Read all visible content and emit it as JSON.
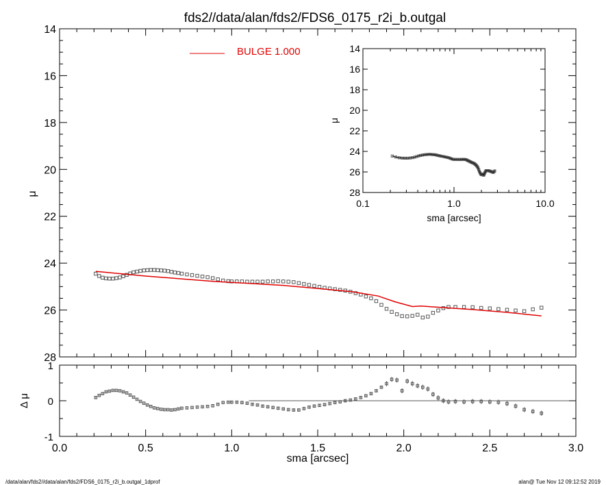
{
  "title": "fds2//data/alan/fds2/FDS6_0175_r2i_b.outgal",
  "footer_left": "/data/alan/fds2//data/alan/fds2/FDS6_0175_r2i_b.outgal_1dprof",
  "footer_right": "alan@  Tue Nov 12 09:12:52 2019",
  "colors": {
    "model": "#e00000",
    "data": "#555555",
    "axes": "#000000"
  },
  "chart_data": [
    {
      "type": "scatter",
      "panel": "main profile",
      "xlabel": "sma [arcsec]",
      "ylabel": "μ",
      "xlim": [
        0.0,
        3.0
      ],
      "ylim": [
        28,
        14
      ],
      "y_inverted": true,
      "xticks": [
        "0.0",
        "0.5",
        "1.0",
        "1.5",
        "2.0",
        "2.5",
        "3.0"
      ],
      "yticks": [
        "14",
        "16",
        "18",
        "20",
        "22",
        "24",
        "26",
        "28"
      ],
      "legend": {
        "label": "BULGE",
        "value": "1.000",
        "placement": "top"
      },
      "series": [
        {
          "name": "data",
          "marker": "square",
          "x": [
            0.21,
            0.23,
            0.25,
            0.27,
            0.29,
            0.31,
            0.33,
            0.35,
            0.37,
            0.39,
            0.41,
            0.43,
            0.45,
            0.47,
            0.49,
            0.51,
            0.53,
            0.55,
            0.57,
            0.59,
            0.61,
            0.63,
            0.65,
            0.67,
            0.69,
            0.71,
            0.74,
            0.77,
            0.8,
            0.83,
            0.86,
            0.89,
            0.92,
            0.95,
            0.98,
            1.0,
            1.03,
            1.06,
            1.09,
            1.12,
            1.15,
            1.18,
            1.21,
            1.24,
            1.27,
            1.3,
            1.33,
            1.36,
            1.39,
            1.42,
            1.45,
            1.48,
            1.51,
            1.54,
            1.57,
            1.6,
            1.63,
            1.66,
            1.69,
            1.72,
            1.75,
            1.78,
            1.81,
            1.84,
            1.87,
            1.9,
            1.93,
            1.96,
            1.99,
            2.02,
            2.05,
            2.08,
            2.11,
            2.14,
            2.17,
            2.2,
            2.23,
            2.26,
            2.3,
            2.35,
            2.4,
            2.45,
            2.5,
            2.55,
            2.6,
            2.65,
            2.7,
            2.75,
            2.8
          ],
          "y": [
            24.45,
            24.55,
            24.62,
            24.65,
            24.66,
            24.66,
            24.64,
            24.61,
            24.56,
            24.5,
            24.44,
            24.39,
            24.36,
            24.33,
            24.31,
            24.3,
            24.29,
            24.29,
            24.3,
            24.31,
            24.32,
            24.34,
            24.37,
            24.4,
            24.42,
            24.45,
            24.48,
            24.51,
            24.54,
            24.57,
            24.6,
            24.64,
            24.69,
            24.74,
            24.77,
            24.78,
            24.78,
            24.78,
            24.79,
            24.79,
            24.79,
            24.79,
            24.78,
            24.78,
            24.77,
            24.78,
            24.79,
            24.81,
            24.85,
            24.89,
            24.93,
            24.97,
            25.01,
            25.05,
            25.08,
            25.11,
            25.14,
            25.17,
            25.22,
            25.28,
            25.34,
            25.42,
            25.5,
            25.62,
            25.78,
            25.95,
            26.08,
            26.18,
            26.26,
            26.27,
            26.25,
            26.2,
            26.32,
            26.28,
            26.12,
            26.02,
            25.92,
            25.87,
            25.87,
            25.87,
            25.88,
            25.91,
            25.93,
            25.96,
            25.99,
            26.02,
            26.05,
            25.97,
            25.9
          ]
        },
        {
          "name": "BULGE",
          "type": "line",
          "x": [
            0.21,
            0.5,
            0.9,
            1.0,
            1.3,
            1.5,
            1.7,
            1.85,
            1.95,
            2.05,
            2.1,
            2.2,
            2.4,
            2.6,
            2.8
          ],
          "y": [
            24.35,
            24.55,
            24.78,
            24.82,
            24.95,
            25.08,
            25.22,
            25.4,
            25.65,
            25.85,
            25.83,
            25.88,
            25.98,
            26.1,
            26.25
          ]
        }
      ]
    },
    {
      "type": "scatter",
      "panel": "residuals",
      "xlabel": "sma [arcsec]",
      "ylabel": "Δ μ",
      "xlim": [
        0.0,
        3.0
      ],
      "ylim": [
        -1,
        1
      ],
      "yticks": [
        "-1",
        "0",
        "1"
      ],
      "reference_line": {
        "y": 0,
        "x_from": 1.1,
        "x_to": 3.0
      },
      "series": [
        {
          "name": "residual",
          "marker": "square-with-errorbar",
          "x": [
            0.21,
            0.23,
            0.25,
            0.27,
            0.29,
            0.31,
            0.33,
            0.35,
            0.37,
            0.39,
            0.41,
            0.43,
            0.45,
            0.47,
            0.49,
            0.51,
            0.53,
            0.55,
            0.57,
            0.59,
            0.61,
            0.63,
            0.65,
            0.67,
            0.69,
            0.71,
            0.74,
            0.77,
            0.8,
            0.83,
            0.86,
            0.89,
            0.92,
            0.95,
            0.98,
            1.0,
            1.03,
            1.06,
            1.09,
            1.12,
            1.15,
            1.18,
            1.21,
            1.24,
            1.27,
            1.3,
            1.33,
            1.36,
            1.39,
            1.42,
            1.45,
            1.48,
            1.51,
            1.54,
            1.57,
            1.6,
            1.63,
            1.66,
            1.69,
            1.72,
            1.75,
            1.78,
            1.81,
            1.84,
            1.87,
            1.9,
            1.93,
            1.96,
            1.99,
            2.02,
            2.05,
            2.08,
            2.11,
            2.14,
            2.17,
            2.2,
            2.23,
            2.26,
            2.3,
            2.35,
            2.4,
            2.45,
            2.5,
            2.55,
            2.6,
            2.65,
            2.7,
            2.75,
            2.8
          ],
          "y": [
            0.09,
            0.15,
            0.2,
            0.25,
            0.27,
            0.29,
            0.29,
            0.28,
            0.25,
            0.22,
            0.16,
            0.1,
            0.04,
            -0.02,
            -0.07,
            -0.12,
            -0.16,
            -0.2,
            -0.22,
            -0.24,
            -0.25,
            -0.25,
            -0.26,
            -0.25,
            -0.23,
            -0.21,
            -0.2,
            -0.19,
            -0.18,
            -0.17,
            -0.16,
            -0.14,
            -0.1,
            -0.05,
            -0.04,
            -0.04,
            -0.04,
            -0.05,
            -0.07,
            -0.1,
            -0.12,
            -0.15,
            -0.17,
            -0.19,
            -0.21,
            -0.23,
            -0.25,
            -0.26,
            -0.26,
            -0.22,
            -0.18,
            -0.15,
            -0.13,
            -0.11,
            -0.08,
            -0.05,
            -0.03,
            0.0,
            0.02,
            0.05,
            0.09,
            0.14,
            0.2,
            0.28,
            0.38,
            0.48,
            0.6,
            0.58,
            0.28,
            0.55,
            0.48,
            0.42,
            0.38,
            0.33,
            0.18,
            0.08,
            0.0,
            -0.03,
            -0.02,
            -0.03,
            -0.02,
            -0.02,
            -0.03,
            -0.04,
            -0.08,
            -0.15,
            -0.25,
            -0.3,
            -0.35
          ]
        }
      ]
    },
    {
      "type": "line",
      "panel": "inset log profile",
      "xlabel": "sma [arcsec]",
      "ylabel": "μ",
      "x_scale": "log",
      "xlim": [
        0.1,
        10.0
      ],
      "ylim": [
        28,
        14
      ],
      "y_inverted": true,
      "xticks": [
        "0.1",
        "1.0",
        "10.0"
      ],
      "yticks": [
        "14",
        "16",
        "18",
        "20",
        "22",
        "24",
        "26",
        "28"
      ],
      "series": [
        {
          "name": "data",
          "source": "same as main profile"
        }
      ]
    }
  ]
}
